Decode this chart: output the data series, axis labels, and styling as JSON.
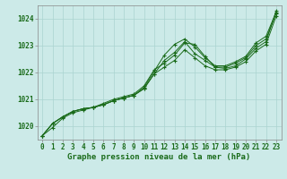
{
  "title": "Graphe pression niveau de la mer (hPa)",
  "background_color": "#cceae8",
  "grid_color": "#aad4d0",
  "line_color": "#1a6b1a",
  "series": [
    [
      1019.65,
      1019.95,
      1020.3,
      1020.5,
      1020.6,
      1020.7,
      1020.85,
      1021.0,
      1021.1,
      1021.2,
      1021.5,
      1022.1,
      1022.35,
      1022.65,
      1023.1,
      1023.05,
      1022.6,
      1022.2,
      1022.15,
      1022.25,
      1022.5,
      1022.9,
      1023.15,
      1024.3
    ],
    [
      1019.65,
      1020.1,
      1020.35,
      1020.55,
      1020.65,
      1020.7,
      1020.8,
      1020.95,
      1021.05,
      1021.15,
      1021.4,
      1021.95,
      1022.2,
      1022.45,
      1022.85,
      1022.55,
      1022.25,
      1022.1,
      1022.1,
      1022.2,
      1022.4,
      1022.8,
      1023.05,
      1024.1
    ],
    [
      1019.65,
      1020.1,
      1020.35,
      1020.55,
      1020.65,
      1020.7,
      1020.8,
      1020.95,
      1021.05,
      1021.15,
      1021.4,
      1021.95,
      1022.45,
      1022.75,
      1023.15,
      1022.7,
      1022.45,
      1022.2,
      1022.2,
      1022.35,
      1022.55,
      1023.0,
      1023.25,
      1024.2
    ],
    [
      1019.65,
      1020.1,
      1020.35,
      1020.55,
      1020.65,
      1020.7,
      1020.8,
      1020.95,
      1021.05,
      1021.15,
      1021.45,
      1022.05,
      1022.65,
      1023.05,
      1023.25,
      1022.95,
      1022.55,
      1022.25,
      1022.25,
      1022.4,
      1022.6,
      1023.1,
      1023.35,
      1024.25
    ]
  ],
  "ylim": [
    1019.5,
    1024.5
  ],
  "yticks": [
    1020,
    1021,
    1022,
    1023,
    1024
  ],
  "xtick_labels": [
    "0",
    "1",
    "2",
    "3",
    "4",
    "5",
    "6",
    "7",
    "8",
    "9",
    "10",
    "11",
    "12",
    "13",
    "14",
    "15",
    "16",
    "17",
    "18",
    "19",
    "20",
    "21",
    "22",
    "23"
  ],
  "title_fontsize": 6.5,
  "tick_fontsize": 5.5,
  "marker": "+",
  "markersize": 3.5,
  "linewidth": 0.7
}
